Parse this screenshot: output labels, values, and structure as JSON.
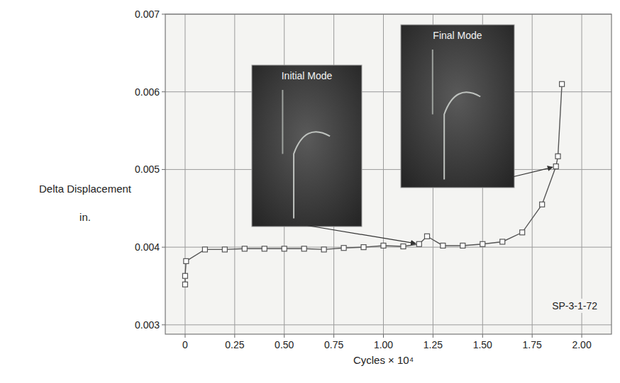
{
  "chart_data": {
    "type": "line",
    "xlabel": "Cycles × 10⁴",
    "ylabel": "Delta Displacement",
    "ylabel_unit": "in.",
    "x": [
      0,
      0,
      0.005,
      0.1,
      0.2,
      0.3,
      0.4,
      0.5,
      0.6,
      0.7,
      0.8,
      0.9,
      1.0,
      1.1,
      1.18,
      1.22,
      1.3,
      1.4,
      1.5,
      1.6,
      1.7,
      1.8,
      1.87,
      1.88,
      1.9
    ],
    "values": [
      0.00352,
      0.00363,
      0.00382,
      0.00397,
      0.00397,
      0.00398,
      0.00398,
      0.00398,
      0.00398,
      0.00397,
      0.00399,
      0.004,
      0.00402,
      0.00401,
      0.00404,
      0.00414,
      0.00402,
      0.00402,
      0.00404,
      0.00407,
      0.00419,
      0.00455,
      0.00504,
      0.00517,
      0.0061
    ],
    "color": "#555555",
    "marker": "square",
    "xlim": [
      -0.1,
      2.15
    ],
    "ylim": [
      0.00288,
      0.007
    ],
    "xticks": [
      0,
      0.25,
      {
        "value": 0.5,
        "label": "0.50"
      },
      0.75,
      {
        "value": 1,
        "label": "1.00"
      },
      1.25,
      {
        "value": 1.5,
        "label": "1.50"
      },
      1.75,
      {
        "value": 2,
        "label": "2.00"
      }
    ],
    "yticks": [
      0.003,
      0.004,
      0.005,
      0.006,
      0.007
    ],
    "grid": true,
    "annotations": [
      {
        "text": "Initial Mode",
        "x": 1.18,
        "y": 0.00404
      },
      {
        "text": "Final Mode",
        "x": 1.87,
        "y": 0.00504
      },
      {
        "text": "SP-3-1-72"
      }
    ]
  }
}
